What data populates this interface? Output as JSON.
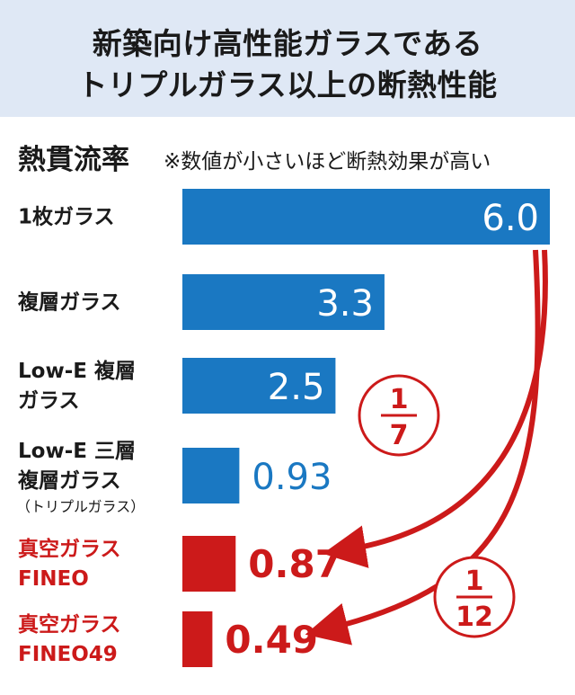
{
  "title": {
    "line1": "新築向け高性能ガラスである",
    "line2": "トリプルガラス以上の断熱性能"
  },
  "section_label": "熱貫流率",
  "note": "※数値が小さいほど断熱効果が高い",
  "colors": {
    "blue": "#1a78c2",
    "red": "#cc1a1a",
    "header_bg": "#dfe8f5"
  },
  "ratios": [
    {
      "numerator": "1",
      "denominator": "7"
    },
    {
      "numerator": "1",
      "denominator": "12"
    }
  ],
  "chart_data": {
    "type": "bar",
    "orientation": "horizontal",
    "categories": [
      {
        "lines": [
          "1枚ガラス"
        ],
        "color": "#1a78c2"
      },
      {
        "lines": [
          "複層ガラス"
        ],
        "color": "#1a78c2"
      },
      {
        "lines": [
          "Low-E 複層",
          "ガラス"
        ],
        "color": "#1a78c2"
      },
      {
        "lines": [
          "Low-E 三層",
          "複層ガラス"
        ],
        "sub": "（トリプルガラス）",
        "color": "#1a78c2"
      },
      {
        "lines": [
          "真空ガラス",
          "FINEO"
        ],
        "color": "#cc1a1a"
      },
      {
        "lines": [
          "真空ガラス",
          "FINEO49"
        ],
        "color": "#cc1a1a"
      }
    ],
    "values": [
      6.0,
      3.3,
      2.5,
      0.93,
      0.87,
      0.49
    ],
    "labels": [
      "6.0",
      "3.3",
      "2.5",
      "0.93",
      "0.87",
      "0.49"
    ],
    "xlim": [
      0,
      6.0
    ],
    "grid": false,
    "legend": "none"
  }
}
